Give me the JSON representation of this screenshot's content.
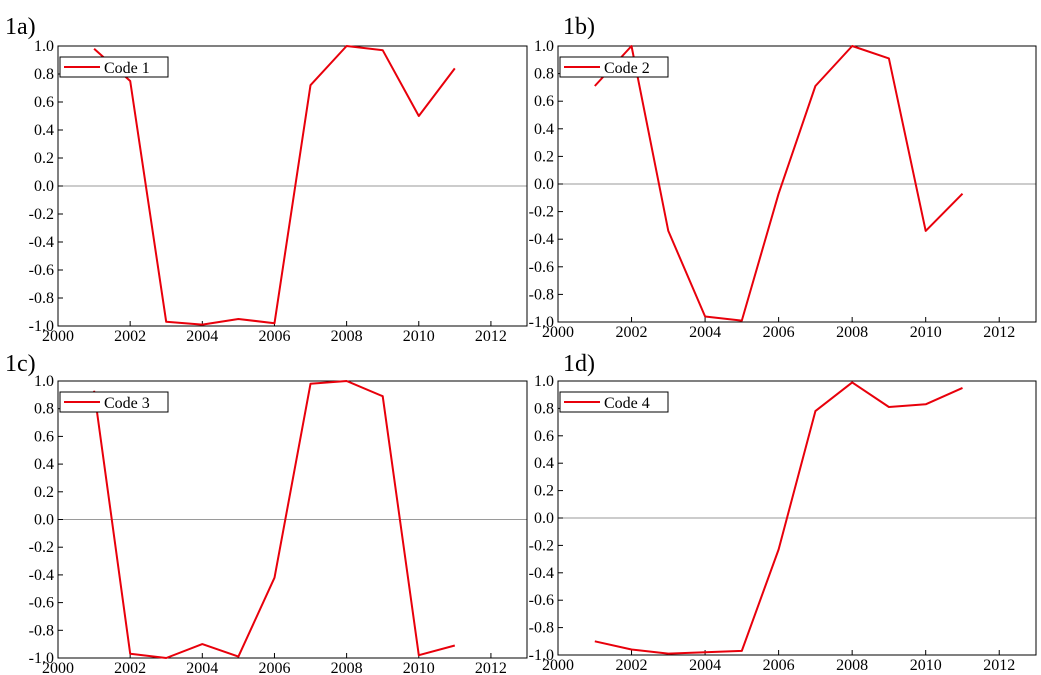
{
  "style": {
    "line_color": "#e8000b",
    "zero_line_color": "#9a9a9a",
    "frame_color": "#000000"
  },
  "chart_data": [
    {
      "type": "line",
      "panel_label": "1a)",
      "x": [
        2001,
        2002,
        2003,
        2004,
        2005,
        2006,
        2007,
        2008,
        2009,
        2010,
        2011
      ],
      "series": [
        {
          "name": "Code 1",
          "values": [
            0.98,
            0.75,
            -0.97,
            -0.99,
            -0.95,
            -0.98,
            0.72,
            1.0,
            0.97,
            0.5,
            0.84
          ]
        }
      ],
      "xlim": [
        2000,
        2013
      ],
      "ylim": [
        -1.0,
        1.0
      ],
      "xticks": [
        "2000",
        "2002",
        "2004",
        "2006",
        "2008",
        "2010",
        "2012"
      ],
      "yticks": [
        "1.0",
        "0.8",
        "0.6",
        "0.4",
        "0.2",
        "0.0",
        "-0.2",
        "-0.4",
        "-0.6",
        "-0.8",
        "-1.0"
      ],
      "legend": "top-left",
      "grid": false
    },
    {
      "type": "line",
      "panel_label": "1b)",
      "x": [
        2001,
        2002,
        2003,
        2004,
        2005,
        2006,
        2007,
        2008,
        2009,
        2010,
        2011
      ],
      "series": [
        {
          "name": "Code 2",
          "values": [
            0.71,
            1.0,
            -0.34,
            -0.96,
            -0.99,
            -0.07,
            0.71,
            1.0,
            0.91,
            -0.34,
            -0.07
          ]
        }
      ],
      "xlim": [
        2000,
        2013
      ],
      "ylim": [
        -1.0,
        1.0
      ],
      "xticks": [
        "2000",
        "2002",
        "2004",
        "2006",
        "2008",
        "2010",
        "2012"
      ],
      "yticks": [
        "1.0",
        "0.8",
        "0.6",
        "0.4",
        "0.2",
        "0.0",
        "-0.2",
        "-0.4",
        "-0.6",
        "-0.8",
        "-1.0"
      ],
      "legend": "top-left",
      "grid": false
    },
    {
      "type": "line",
      "panel_label": "1c)",
      "x": [
        2001,
        2002,
        2003,
        2004,
        2005,
        2006,
        2007,
        2008,
        2009,
        2010,
        2011
      ],
      "series": [
        {
          "name": "Code 3",
          "values": [
            0.93,
            -0.97,
            -1.0,
            -0.9,
            -0.99,
            -0.42,
            0.98,
            1.0,
            0.89,
            -0.98,
            -0.91
          ]
        }
      ],
      "xlim": [
        2000,
        2013
      ],
      "ylim": [
        -1.0,
        1.0
      ],
      "xticks": [
        "2000",
        "2002",
        "2004",
        "2006",
        "2008",
        "2010",
        "2012"
      ],
      "yticks": [
        "1.0",
        "0.8",
        "0.6",
        "0.4",
        "0.2",
        "0.0",
        "-0.2",
        "-0.4",
        "-0.6",
        "-0.8",
        "-1.0"
      ],
      "legend": "top-left",
      "grid": false
    },
    {
      "type": "line",
      "panel_label": "1d)",
      "x": [
        2001,
        2002,
        2003,
        2004,
        2005,
        2006,
        2007,
        2008,
        2009,
        2010,
        2011
      ],
      "series": [
        {
          "name": "Code 4",
          "values": [
            -0.9,
            -0.96,
            -0.99,
            -0.98,
            -0.97,
            -0.23,
            0.78,
            0.99,
            0.81,
            0.83,
            0.95
          ]
        }
      ],
      "xlim": [
        2000,
        2013
      ],
      "ylim": [
        -1.0,
        1.0
      ],
      "xticks": [
        "2000",
        "2002",
        "2004",
        "2006",
        "2008",
        "2010",
        "2012"
      ],
      "yticks": [
        "1.0",
        "0.8",
        "0.6",
        "0.4",
        "0.2",
        "0.0",
        "-0.2",
        "-0.4",
        "-0.6",
        "-0.8",
        "-1.0"
      ],
      "legend": "top-left",
      "grid": false
    }
  ]
}
